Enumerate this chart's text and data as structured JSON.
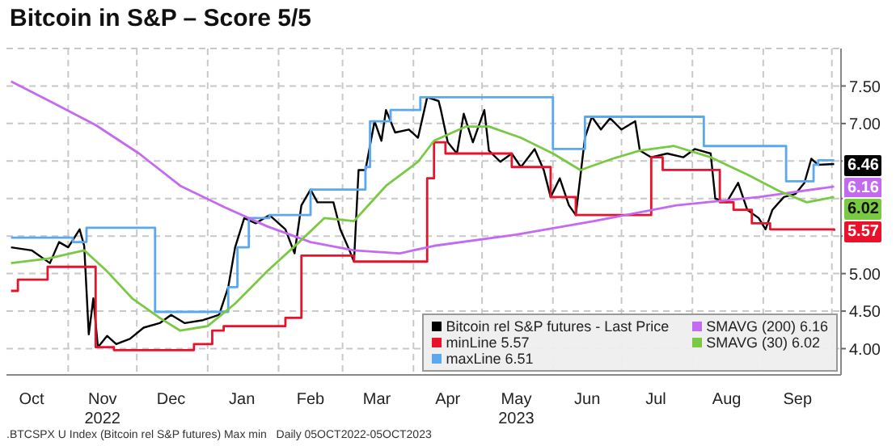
{
  "chart_data": {
    "type": "line",
    "title": "Bitcoin in S&P – Score 5/5",
    "xlim": [
      "2022-10-05",
      "2023-10-05"
    ],
    "xticks": [
      {
        "value": "2022-10-16",
        "label": "Oct"
      },
      {
        "value": "2022-11-01",
        "label": null
      },
      {
        "value": "2022-11-16",
        "label": "Nov\n2022"
      },
      {
        "value": "2022-12-01",
        "label": null
      },
      {
        "value": "2022-12-16",
        "label": "Dec"
      },
      {
        "value": "2023-01-01",
        "label": null
      },
      {
        "value": "2023-01-16",
        "label": "Jan"
      },
      {
        "value": "2023-02-01",
        "label": null
      },
      {
        "value": "2023-02-15",
        "label": "Feb"
      },
      {
        "value": "2023-03-01",
        "label": null
      },
      {
        "value": "2023-03-16",
        "label": "Mar"
      },
      {
        "value": "2023-04-01",
        "label": null
      },
      {
        "value": "2023-04-16",
        "label": "Apr"
      },
      {
        "value": "2023-05-01",
        "label": null
      },
      {
        "value": "2023-05-16",
        "label": "May\n2023"
      },
      {
        "value": "2023-06-01",
        "label": null
      },
      {
        "value": "2023-06-16",
        "label": "Jun"
      },
      {
        "value": "2023-07-01",
        "label": null
      },
      {
        "value": "2023-07-16",
        "label": "Jul"
      },
      {
        "value": "2023-08-01",
        "label": null
      },
      {
        "value": "2023-08-16",
        "label": "Aug"
      },
      {
        "value": "2023-09-01",
        "label": null
      },
      {
        "value": "2023-09-16",
        "label": "Sep"
      },
      {
        "value": "2023-10-01",
        "label": null
      }
    ],
    "ylim": [
      3.65,
      8.0
    ],
    "yticks": [
      {
        "value": 4,
        "label": "4.00"
      },
      {
        "value": 4.5,
        "label": "4.50"
      },
      {
        "value": 5,
        "label": "5.00"
      },
      {
        "value": 5.5,
        "label": null
      },
      {
        "value": 6,
        "label": null
      },
      {
        "value": 6.5,
        "label": null
      },
      {
        "value": 7,
        "label": "7.00"
      },
      {
        "value": 7.5,
        "label": "7.50"
      }
    ],
    "grid": true,
    "legend": "bottom right",
    "line_style": "solid",
    "marker": "none",
    "series": [
      {
        "name": "Bitcoin rel S&P futures - Last Price",
        "color": "#000000",
        "x": [
          "2022-10-07",
          "2022-10-16",
          "2022-10-24",
          "2022-10-28",
          "2022-11-01",
          "2022-11-06",
          "2022-11-08",
          "2022-11-10",
          "2022-11-12",
          "2022-11-14",
          "2022-11-18",
          "2022-11-22",
          "2022-11-28",
          "2022-12-04",
          "2022-12-11",
          "2022-12-16",
          "2022-12-22",
          "2022-12-30",
          "2023-01-06",
          "2023-01-10",
          "2023-01-13",
          "2023-01-17",
          "2023-01-22",
          "2023-01-28",
          "2023-02-04",
          "2023-02-08",
          "2023-02-11",
          "2023-02-15",
          "2023-02-18",
          "2023-02-25",
          "2023-02-28",
          "2023-03-04",
          "2023-03-06",
          "2023-03-08",
          "2023-03-11",
          "2023-03-15",
          "2023-03-18",
          "2023-03-20",
          "2023-03-24",
          "2023-03-30",
          "2023-04-03",
          "2023-04-07",
          "2023-04-12",
          "2023-04-13",
          "2023-04-16",
          "2023-04-20",
          "2023-04-23",
          "2023-04-27",
          "2023-05-02",
          "2023-05-04",
          "2023-05-09",
          "2023-05-14",
          "2023-05-18",
          "2023-05-24",
          "2023-05-28",
          "2023-05-31",
          "2023-06-04",
          "2023-06-08",
          "2023-06-11",
          "2023-06-15",
          "2023-06-18",
          "2023-06-22",
          "2023-06-26",
          "2023-07-01",
          "2023-07-07",
          "2023-07-09",
          "2023-07-14",
          "2023-07-21",
          "2023-07-28",
          "2023-08-02",
          "2023-08-09",
          "2023-08-11",
          "2023-08-16",
          "2023-08-21",
          "2023-08-25",
          "2023-08-30",
          "2023-09-02",
          "2023-09-05",
          "2023-09-10",
          "2023-09-15",
          "2023-09-19",
          "2023-09-22",
          "2023-09-25",
          "2023-10-02"
        ],
        "values": [
          5.35,
          5.31,
          5.14,
          5.42,
          5.35,
          5.59,
          5.37,
          4.19,
          4.67,
          4.02,
          4.17,
          4.06,
          4.13,
          4.28,
          4.34,
          4.45,
          4.34,
          4.38,
          4.45,
          4.82,
          5.35,
          5.74,
          5.67,
          5.78,
          5.59,
          5.27,
          5.91,
          6.12,
          5.95,
          5.95,
          5.59,
          5.31,
          5.16,
          6.38,
          6.38,
          7.03,
          6.77,
          7.18,
          6.88,
          6.92,
          6.81,
          7.35,
          7.3,
          7.18,
          6.75,
          6.6,
          7.13,
          6.75,
          7.18,
          6.64,
          6.49,
          6.6,
          6.42,
          6.66,
          6.38,
          6.02,
          6.27,
          5.91,
          5.78,
          6.81,
          7.09,
          6.92,
          7.07,
          6.92,
          7.03,
          6.64,
          6.55,
          6.6,
          6.55,
          6.66,
          6.6,
          6.0,
          5.95,
          6.21,
          5.85,
          5.74,
          5.59,
          5.85,
          6.02,
          6.06,
          6.21,
          6.53,
          6.45,
          6.46
        ]
      },
      {
        "name": "minLine 5.57",
        "type": "step",
        "color": "#e8132a",
        "x": [
          "2022-10-07",
          "2022-10-10",
          "2022-10-23",
          "2022-11-13",
          "2022-11-21",
          "2022-12-26",
          "2023-01-03",
          "2023-01-08",
          "2023-02-04",
          "2023-02-11",
          "2023-03-06",
          "2023-04-07",
          "2023-04-10",
          "2023-04-15",
          "2023-05-14",
          "2023-05-31",
          "2023-06-11",
          "2023-07-14",
          "2023-07-19",
          "2023-08-13",
          "2023-08-19",
          "2023-08-27",
          "2023-09-04",
          "2023-10-02"
        ],
        "values": [
          4.77,
          4.92,
          5.09,
          4.02,
          3.98,
          4.06,
          4.24,
          4.3,
          4.41,
          5.24,
          5.16,
          6.27,
          6.75,
          6.6,
          6.42,
          6.02,
          5.78,
          6.55,
          6.38,
          5.95,
          5.85,
          5.67,
          5.59,
          5.57
        ]
      },
      {
        "name": "maxLine 6.51",
        "type": "step",
        "color": "#5aa9f0",
        "x": [
          "2022-10-07",
          "2022-11-03",
          "2022-11-09",
          "2022-12-09",
          "2023-01-10",
          "2023-01-14",
          "2023-01-19",
          "2023-01-28",
          "2023-02-15",
          "2023-03-11",
          "2023-03-13",
          "2023-03-22",
          "2023-04-04",
          "2023-06-01",
          "2023-06-15",
          "2023-08-06",
          "2023-09-11",
          "2023-09-23",
          "2023-09-25",
          "2023-10-02"
        ],
        "values": [
          5.48,
          5.42,
          5.61,
          4.49,
          4.82,
          5.35,
          5.74,
          5.78,
          6.12,
          6.42,
          7.03,
          7.18,
          7.35,
          6.66,
          7.09,
          6.7,
          6.23,
          6.45,
          6.51,
          6.51
        ]
      },
      {
        "name": "SMAVG (200) 6.16",
        "color": "#c36af0",
        "x": [
          "2022-10-07",
          "2022-10-25",
          "2022-11-13",
          "2022-12-02",
          "2022-12-20",
          "2023-01-08",
          "2023-01-27",
          "2023-02-15",
          "2023-03-06",
          "2023-03-26",
          "2023-04-10",
          "2023-05-16",
          "2023-06-19",
          "2023-07-25",
          "2023-08-30",
          "2023-10-02"
        ],
        "values": [
          7.56,
          7.28,
          6.98,
          6.6,
          6.17,
          5.89,
          5.63,
          5.42,
          5.31,
          5.27,
          5.37,
          5.52,
          5.7,
          5.91,
          6.02,
          6.16
        ]
      },
      {
        "name": "SMAVG (30) 6.02",
        "color": "#7ac943",
        "x": [
          "2022-10-07",
          "2022-10-23",
          "2022-11-08",
          "2022-11-18",
          "2022-11-29",
          "2022-12-11",
          "2022-12-20",
          "2023-01-01",
          "2023-01-13",
          "2023-01-27",
          "2023-02-10",
          "2023-02-21",
          "2023-03-06",
          "2023-03-20",
          "2023-04-03",
          "2023-04-10",
          "2023-04-24",
          "2023-05-04",
          "2023-05-18",
          "2023-06-01",
          "2023-06-13",
          "2023-06-27",
          "2023-07-09",
          "2023-07-24",
          "2023-08-09",
          "2023-08-25",
          "2023-09-08",
          "2023-09-20",
          "2023-10-02"
        ],
        "values": [
          5.14,
          5.2,
          5.31,
          5.03,
          4.67,
          4.41,
          4.24,
          4.3,
          4.6,
          5.03,
          5.42,
          5.74,
          5.7,
          6.17,
          6.49,
          6.77,
          6.96,
          6.96,
          6.81,
          6.6,
          6.38,
          6.53,
          6.64,
          6.7,
          6.55,
          6.32,
          6.1,
          5.95,
          6.02
        ]
      }
    ],
    "annotations": [
      {
        "text": "6.46",
        "x": "2023-10-02",
        "y": 6.46
      },
      {
        "text": "6.16",
        "x": "2023-10-02",
        "y": 6.16
      },
      {
        "text": "6.02",
        "x": "2023-10-02",
        "y": 6.02
      },
      {
        "text": "5.57",
        "x": "2023-10-02",
        "y": 5.57
      },
      ".BTCSPX U Index (Bitcoin rel S&P futures) Max min   Daily 05OCT2022-05OCT2023"
    ]
  }
}
